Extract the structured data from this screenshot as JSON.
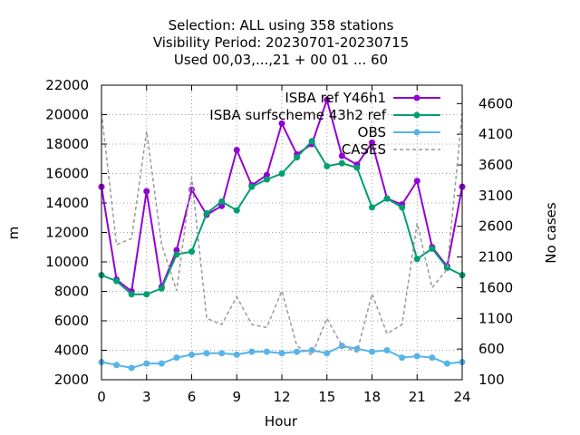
{
  "chart_data": {
    "type": "line",
    "title_lines": [
      "Selection: ALL using   358 stations",
      "Visibility   Period: 20230701-20230715",
      "Used  00,03,...,21  + 00 01 ... 60"
    ],
    "xlabel": "Hour",
    "ylabel": "m",
    "y2label": "No cases",
    "xlim": [
      0,
      24
    ],
    "ylim": [
      2000,
      22000
    ],
    "y2lim": [
      100,
      4900
    ],
    "xticks": [
      0,
      3,
      6,
      9,
      12,
      15,
      18,
      21,
      24
    ],
    "yticks": [
      2000,
      4000,
      6000,
      8000,
      10000,
      12000,
      14000,
      16000,
      18000,
      20000,
      22000
    ],
    "y2ticks": [
      100,
      600,
      1100,
      1600,
      2100,
      2600,
      3100,
      3600,
      4100,
      4600
    ],
    "grid": true,
    "legend_position": "top-right",
    "x": [
      0,
      1,
      2,
      3,
      4,
      5,
      6,
      7,
      8,
      9,
      10,
      11,
      12,
      13,
      14,
      15,
      16,
      17,
      18,
      19,
      20,
      21,
      22,
      23,
      24
    ],
    "series": [
      {
        "name": "ISBA_ref_Y46h1",
        "legend_label": "ISBA ref Y46h1",
        "color": "#9400d3",
        "marker": "filled-circle",
        "axis": "y",
        "values": [
          15100,
          8800,
          8000,
          14800,
          8300,
          10800,
          14900,
          13200,
          13800,
          17600,
          15200,
          15900,
          19400,
          17300,
          18000,
          21000,
          17200,
          16600,
          18100,
          14300,
          13900,
          15500,
          11000,
          9700,
          15100
        ]
      },
      {
        "name": "ISBA_surfscheme_43h2_ref",
        "legend_label": "ISBA surfscheme 43h2 ref",
        "color": "#009e73",
        "marker": "filled-circle",
        "axis": "y",
        "values": [
          9100,
          8700,
          7800,
          7800,
          8200,
          10500,
          10700,
          13300,
          14100,
          13500,
          15100,
          15600,
          16000,
          17100,
          18200,
          16500,
          16700,
          16400,
          13700,
          14300,
          13700,
          10200,
          10900,
          9600,
          9100
        ]
      },
      {
        "name": "OBS",
        "legend_label": "OBS",
        "color": "#56b4e9",
        "marker": "filled-circle",
        "axis": "y",
        "values": [
          3200,
          3000,
          2800,
          3100,
          3100,
          3500,
          3700,
          3800,
          3800,
          3700,
          3900,
          3900,
          3800,
          3900,
          4000,
          3800,
          4300,
          4100,
          3900,
          4000,
          3500,
          3600,
          3500,
          3100,
          3200
        ]
      },
      {
        "name": "CASES",
        "legend_label": "CASES",
        "color": "#999999",
        "marker": "none",
        "dash": "dashed",
        "axis": "y2",
        "values": [
          4450,
          2300,
          2400,
          4150,
          2300,
          1550,
          3400,
          1100,
          1000,
          1450,
          1000,
          950,
          1550,
          650,
          500,
          1100,
          650,
          550,
          1500,
          850,
          1000,
          2650,
          1600,
          1900,
          4450
        ]
      }
    ]
  }
}
